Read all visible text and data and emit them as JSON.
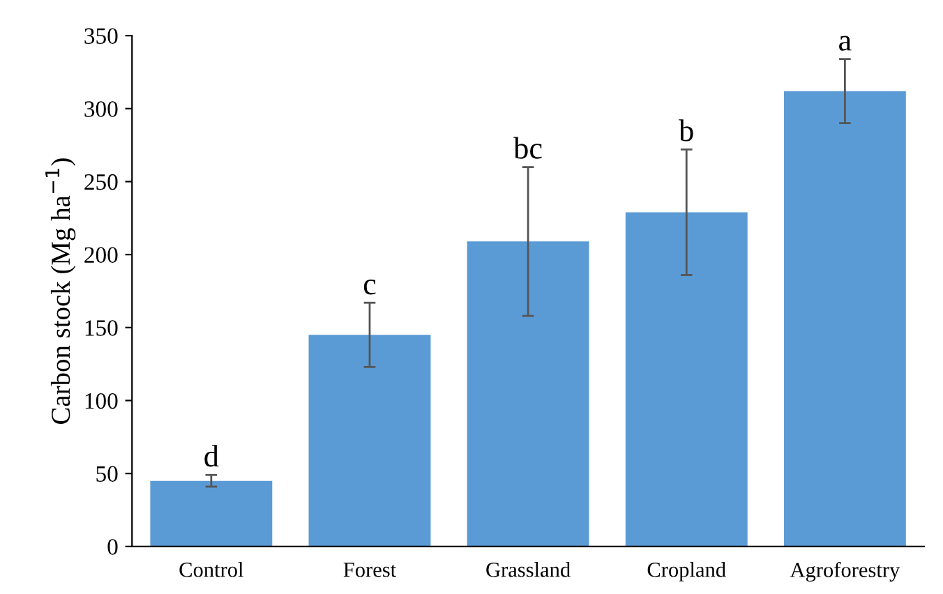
{
  "chart_data": {
    "type": "bar",
    "ylabel": "Carbon stock (Mg ha$^{−1}$)",
    "categories": [
      "Control",
      "Forest",
      "Grassland",
      "Cropland",
      "Agroforestry"
    ],
    "values": [
      45,
      145,
      209,
      229,
      312
    ],
    "errors": [
      4,
      22,
      51,
      43,
      22
    ],
    "color": "#5b9bd5",
    "ylim": [
      0,
      350
    ],
    "yticks": [
      0,
      50,
      100,
      150,
      200,
      250,
      300,
      350
    ],
    "grid": false,
    "annotations": [
      {
        "text": "d",
        "x": "Control",
        "y": 49
      },
      {
        "text": "c",
        "x": "Forest",
        "y": 167
      },
      {
        "text": "bc",
        "x": "Grassland",
        "y": 260
      },
      {
        "text": "b",
        "x": "Cropland",
        "y": 272
      },
      {
        "text": "a",
        "x": "Agroforestry",
        "y": 334
      }
    ]
  }
}
